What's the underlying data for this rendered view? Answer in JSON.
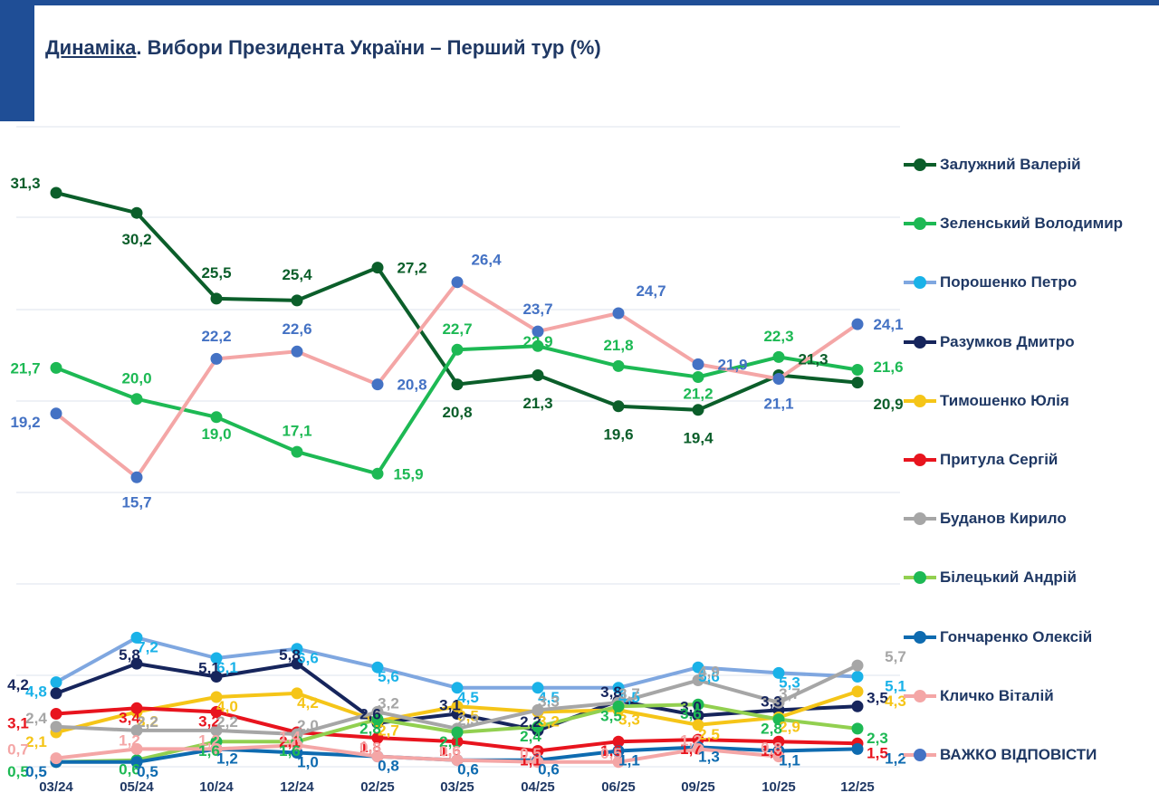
{
  "title": {
    "prefix": "Динаміка",
    "rest": ". Вибори Президента України – Перший тур (%)"
  },
  "chart_data": {
    "type": "line",
    "title": "Динаміка. Вибори Президента України – Перший тур (%)",
    "categories": [
      "03/24",
      "05/24",
      "10/24",
      "12/24",
      "02/25",
      "03/25",
      "04/25",
      "06/25",
      "09/25",
      "10/25",
      "12/25"
    ],
    "ylabel": "%",
    "grid": true,
    "legend_position": "right",
    "series": [
      {
        "name": "Залужний Валерій",
        "color": "#0b5e2a",
        "values": [
          31.3,
          30.2,
          25.5,
          25.4,
          27.2,
          20.8,
          21.3,
          19.6,
          19.4,
          21.3,
          20.9
        ],
        "labels": [
          "31,3",
          "30,2",
          "25,5",
          "25,4",
          "27,2",
          "20,8",
          "21,3",
          "19,6",
          "19,4",
          "21,3",
          "20,9"
        ]
      },
      {
        "name": "Зеленський Володимир",
        "color": "#1db954",
        "values": [
          21.7,
          20.0,
          19.0,
          17.1,
          15.9,
          22.7,
          22.9,
          21.8,
          21.2,
          22.3,
          21.6
        ],
        "labels": [
          "21,7",
          "20,0",
          "19,0",
          "17,1",
          "15,9",
          "22,7",
          "22,9",
          "21,8",
          "21,2",
          "22,3",
          "21,6"
        ]
      },
      {
        "name": "Порошенко Петро",
        "color": "#1ab2e8",
        "line_color": "#7fa7e0",
        "values": [
          4.8,
          7.2,
          6.1,
          6.6,
          5.6,
          4.5,
          4.5,
          4.5,
          5.6,
          5.3,
          5.1
        ],
        "labels": [
          "4,8",
          "7,2",
          "6,1",
          "6,6",
          "5,6",
          "4,5",
          "4,5",
          "4,5",
          "5,6",
          "5,3",
          "5,1"
        ]
      },
      {
        "name": "Разумков Дмитро",
        "color": "#16255c",
        "values": [
          4.2,
          5.8,
          5.1,
          5.8,
          2.6,
          3.1,
          2.2,
          3.8,
          3.0,
          3.3,
          3.5
        ],
        "labels": [
          "4,2",
          "5,8",
          "5,1",
          "5,8",
          "2,6",
          "3,1",
          "2,2",
          "3,8",
          "3,0",
          "3,3",
          "3,5"
        ]
      },
      {
        "name": "Тимошенко Юлія",
        "color": "#f5c518",
        "values": [
          2.1,
          3.2,
          4.0,
          4.2,
          2.7,
          3.5,
          3.2,
          3.3,
          2.5,
          2.9,
          4.3
        ],
        "labels": [
          "2,1",
          "3,2",
          "4,0",
          "4,2",
          "2,7",
          "3,5",
          "3,2",
          "3,3",
          "2,5",
          "2,9",
          "4,3"
        ]
      },
      {
        "name": "Притула Сергій",
        "color": "#e8141e",
        "values": [
          3.1,
          3.4,
          3.2,
          2.1,
          1.8,
          1.6,
          1.1,
          1.6,
          1.7,
          1.6,
          1.5
        ],
        "labels": [
          "3,1",
          "3,4",
          "3,2",
          "2,1",
          "1,8",
          "1,6",
          "1,1",
          "1,6",
          "1,7",
          "1,6",
          "1,5"
        ]
      },
      {
        "name": "Буданов Кирило",
        "color": "#a6a6a6",
        "values": [
          2.4,
          2.2,
          2.2,
          2.0,
          3.2,
          2.3,
          3.3,
          3.7,
          4.9,
          3.7,
          5.7
        ],
        "labels": [
          "2,4",
          "2,2",
          "2,2",
          "2,0",
          "3,2",
          "2,3",
          "3,3",
          "3,7",
          "4,9",
          "3,7",
          "5,7"
        ]
      },
      {
        "name": "Білецький Андрій",
        "color": "#1db954",
        "line_color": "#92d050",
        "values": [
          0.5,
          0.6,
          1.6,
          1.6,
          2.8,
          2.1,
          2.4,
          3.5,
          3.6,
          2.8,
          2.3
        ],
        "labels": [
          "0,5",
          "0,6",
          "1,6",
          "1,6",
          "2,8",
          "2,1",
          "2,4",
          "3,5",
          "3,6",
          "2,8",
          "2,3"
        ]
      },
      {
        "name": "Гончаренко Олексій",
        "color": "#0e6bb0",
        "values": [
          0.5,
          0.5,
          1.2,
          1.0,
          0.8,
          0.6,
          0.6,
          1.1,
          1.3,
          1.1,
          1.2
        ],
        "labels": [
          "0,5",
          "0,5",
          "1,2",
          "1,0",
          "0,8",
          "0,6",
          "0,6",
          "1,1",
          "1,3",
          "1,1",
          "1,2"
        ]
      },
      {
        "name": "Кличко Віталій",
        "color": "#f4a6a6",
        "values": [
          0.7,
          1.2,
          1.2,
          1.4,
          0.8,
          0.6,
          0.5,
          0.5,
          1.2,
          0.8,
          null
        ],
        "labels": [
          "0,7",
          "1,2",
          "1,2",
          "1,4",
          "0,8",
          "0,6",
          "0,5",
          "0,5",
          "1,2",
          "0,8",
          ""
        ]
      },
      {
        "name": "ВАЖКО ВІДПОВІСТИ",
        "color": "#4472c4",
        "line_color": "#f4a6a6",
        "values": [
          19.2,
          15.7,
          22.2,
          22.6,
          20.8,
          26.4,
          23.7,
          24.7,
          21.9,
          21.1,
          24.1
        ],
        "labels": [
          "19,2",
          "15,7",
          "22,2",
          "22,6",
          "20,8",
          "26,4",
          "23,7",
          "24,7",
          "21,9",
          "21,1",
          "24,1"
        ]
      }
    ]
  }
}
